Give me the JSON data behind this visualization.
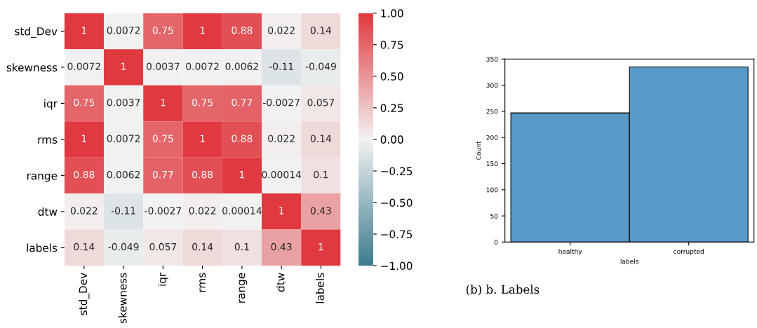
{
  "chart_data": [
    {
      "type": "heatmap",
      "categories": [
        "std_Dev",
        "skewness",
        "iqr",
        "rms",
        "range",
        "dtw",
        "labels"
      ],
      "y_categories": [
        "std_Dev",
        "skewness",
        "iqr",
        "rms",
        "range",
        "dtw",
        "labels"
      ],
      "cells": [
        [
          1,
          0.0072,
          0.75,
          1,
          0.88,
          0.022,
          0.14
        ],
        [
          0.0072,
          1,
          0.0037,
          0.0072,
          0.0062,
          -0.11,
          -0.049
        ],
        [
          0.75,
          0.0037,
          1,
          0.75,
          0.77,
          -0.0027,
          0.057
        ],
        [
          1,
          0.0072,
          0.75,
          1,
          0.88,
          0.022,
          0.14
        ],
        [
          0.88,
          0.0062,
          0.77,
          0.88,
          1,
          0.00014,
          0.1
        ],
        [
          0.022,
          -0.11,
          -0.0027,
          0.022,
          0.00014,
          1,
          0.43
        ],
        [
          0.14,
          -0.049,
          0.057,
          0.14,
          0.1,
          0.43,
          1
        ]
      ],
      "clim": [
        -1,
        1
      ],
      "cticks": [
        {
          "value": -1,
          "label": "−1.00"
        },
        {
          "value": -0.75,
          "label": "−0.75"
        },
        {
          "value": -0.5,
          "label": "−0.50"
        },
        {
          "value": -0.25,
          "label": "−0.25"
        },
        {
          "value": 0,
          "label": "0.00"
        },
        {
          "value": 0.25,
          "label": "0.25"
        },
        {
          "value": 0.5,
          "label": "0.50"
        },
        {
          "value": 0.75,
          "label": "0.75"
        },
        {
          "value": 1,
          "label": "1.00"
        }
      ],
      "data_labels": true
    },
    {
      "type": "bar",
      "categories": [
        "healthy",
        "corrupted"
      ],
      "values": [
        247,
        335
      ],
      "color": "#5799c7",
      "ylim": [
        0,
        350
      ],
      "yticks": [
        0,
        50,
        100,
        150,
        200,
        250,
        300,
        350
      ],
      "xlabel": "labels",
      "ylabel": "Count",
      "annotations": [
        "(b) b. Labels"
      ]
    }
  ]
}
